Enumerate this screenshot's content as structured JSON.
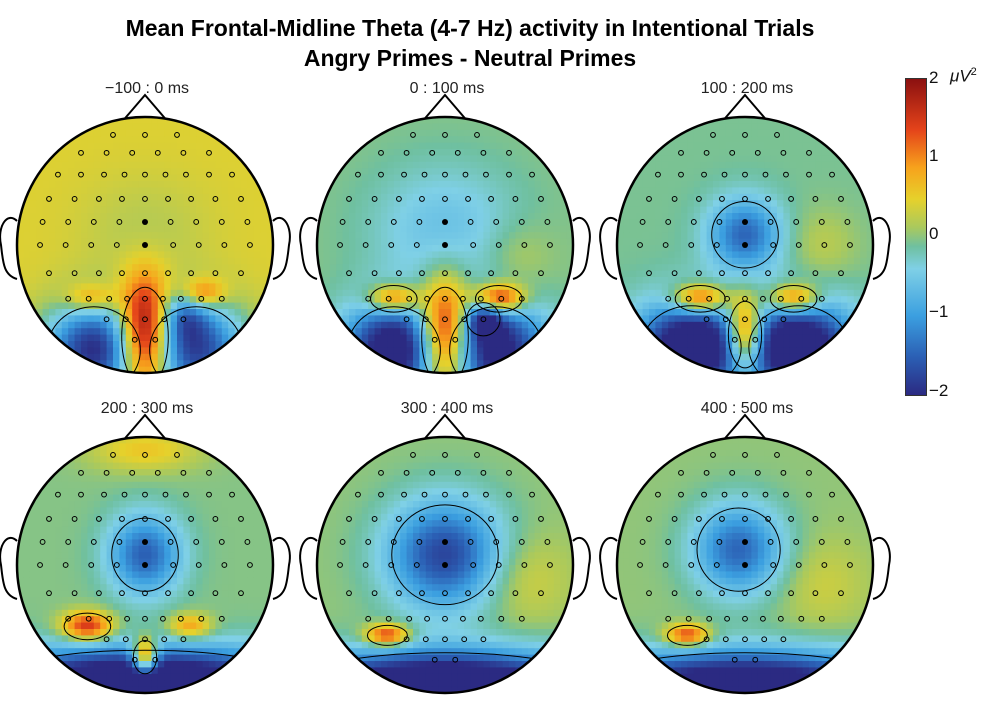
{
  "chart_data": {
    "type": "heatmap",
    "title": "Mean Frontal-Midline Theta (4-7 Hz) activity in Intentional Trials",
    "subtitle": "Angry Primes - Neutral Primes",
    "colorbar": {
      "unit_prefix": "μV",
      "unit_power": "2",
      "ticks": [
        "2",
        "1",
        "0",
        "−1",
        "−2"
      ],
      "range": [
        -2,
        2
      ],
      "colormap": "parula-jet"
    },
    "panels": [
      {
        "label": "−100 :   0 ms",
        "t_start": -100,
        "t_end": 0,
        "background": 0.45,
        "blobs": [
          {
            "x": 0.0,
            "y": -0.72,
            "sx": 0.14,
            "sy": 0.3,
            "v": 2.6
          },
          {
            "x": -0.4,
            "y": -0.82,
            "sx": 0.28,
            "sy": 0.26,
            "v": -2.4
          },
          {
            "x": 0.4,
            "y": -0.82,
            "sx": 0.28,
            "sy": 0.26,
            "v": -2.2
          },
          {
            "x": 0.3,
            "y": -0.55,
            "sx": 0.13,
            "sy": 0.13,
            "v": -0.9
          },
          {
            "x": -0.42,
            "y": -0.42,
            "sx": 0.14,
            "sy": 0.08,
            "v": 0.9
          },
          {
            "x": 0.45,
            "y": -0.38,
            "sx": 0.12,
            "sy": 0.08,
            "v": 1.1
          },
          {
            "x": 0.0,
            "y": 0.1,
            "sx": 0.35,
            "sy": 0.3,
            "v": -0.25
          }
        ]
      },
      {
        "label": "0 : 100 ms",
        "t_start": 0,
        "t_end": 100,
        "background": 0.0,
        "blobs": [
          {
            "x": 0.0,
            "y": -0.72,
            "sx": 0.14,
            "sy": 0.3,
            "v": 2.6
          },
          {
            "x": -0.4,
            "y": -0.82,
            "sx": 0.28,
            "sy": 0.26,
            "v": -2.4
          },
          {
            "x": 0.4,
            "y": -0.82,
            "sx": 0.28,
            "sy": 0.26,
            "v": -2.2
          },
          {
            "x": 0.3,
            "y": -0.58,
            "sx": 0.1,
            "sy": 0.1,
            "v": -1.2
          },
          {
            "x": -0.4,
            "y": -0.42,
            "sx": 0.14,
            "sy": 0.08,
            "v": 1.6
          },
          {
            "x": 0.42,
            "y": -0.42,
            "sx": 0.14,
            "sy": 0.08,
            "v": 2.0
          },
          {
            "x": 0.0,
            "y": 0.12,
            "sx": 0.4,
            "sy": 0.35,
            "v": -0.6
          },
          {
            "x": 0.55,
            "y": -0.1,
            "sx": 0.2,
            "sy": 0.2,
            "v": 0.3
          }
        ]
      },
      {
        "label": "100 : 200 ms",
        "t_start": 100,
        "t_end": 200,
        "background": -0.05,
        "blobs": [
          {
            "x": 0.0,
            "y": -0.7,
            "sx": 0.1,
            "sy": 0.2,
            "v": 2.4
          },
          {
            "x": -0.42,
            "y": -0.8,
            "sx": 0.3,
            "sy": 0.25,
            "v": -2.6
          },
          {
            "x": 0.42,
            "y": -0.8,
            "sx": 0.3,
            "sy": 0.25,
            "v": -2.6
          },
          {
            "x": -0.35,
            "y": -0.42,
            "sx": 0.15,
            "sy": 0.08,
            "v": 1.8
          },
          {
            "x": 0.38,
            "y": -0.42,
            "sx": 0.14,
            "sy": 0.08,
            "v": 1.6
          },
          {
            "x": 0.0,
            "y": 0.08,
            "sx": 0.2,
            "sy": 0.2,
            "v": -1.4
          },
          {
            "x": 0.6,
            "y": 0.0,
            "sx": 0.2,
            "sy": 0.2,
            "v": 0.3
          }
        ]
      },
      {
        "label": "200 : 300 ms",
        "t_start": 200,
        "t_end": 300,
        "background": 0.0,
        "blobs": [
          {
            "x": 0.0,
            "y": -0.72,
            "sx": 0.07,
            "sy": 0.1,
            "v": 2.2
          },
          {
            "x": 0.0,
            "y": -0.9,
            "sx": 0.9,
            "sy": 0.18,
            "v": -2.8
          },
          {
            "x": -0.45,
            "y": -0.48,
            "sx": 0.14,
            "sy": 0.08,
            "v": 1.6
          },
          {
            "x": 0.35,
            "y": -0.48,
            "sx": 0.12,
            "sy": 0.07,
            "v": 1.0
          },
          {
            "x": 0.0,
            "y": 0.08,
            "sx": 0.2,
            "sy": 0.22,
            "v": -1.5
          },
          {
            "x": 0.0,
            "y": 0.9,
            "sx": 0.3,
            "sy": 0.12,
            "v": 0.6
          }
        ]
      },
      {
        "label": "300 : 400 ms",
        "t_start": 300,
        "t_end": 400,
        "background": 0.05,
        "blobs": [
          {
            "x": 0.0,
            "y": -0.92,
            "sx": 0.9,
            "sy": 0.18,
            "v": -2.8
          },
          {
            "x": -0.45,
            "y": -0.55,
            "sx": 0.12,
            "sy": 0.06,
            "v": 1.6
          },
          {
            "x": 0.0,
            "y": 0.08,
            "sx": 0.32,
            "sy": 0.3,
            "v": -1.8
          },
          {
            "x": 0.6,
            "y": -0.1,
            "sx": 0.25,
            "sy": 0.25,
            "v": 0.4
          }
        ]
      },
      {
        "label": "400 : 500 ms",
        "t_start": 400,
        "t_end": 500,
        "background": 0.05,
        "blobs": [
          {
            "x": 0.0,
            "y": -0.92,
            "sx": 0.9,
            "sy": 0.18,
            "v": -2.6
          },
          {
            "x": -0.45,
            "y": -0.55,
            "sx": 0.12,
            "sy": 0.06,
            "v": 1.5
          },
          {
            "x": -0.05,
            "y": 0.12,
            "sx": 0.25,
            "sy": 0.25,
            "v": -1.5
          },
          {
            "x": 0.6,
            "y": -0.15,
            "sx": 0.25,
            "sy": 0.25,
            "v": 0.3
          }
        ]
      }
    ],
    "grid": false,
    "legend": "colorbar-right"
  }
}
